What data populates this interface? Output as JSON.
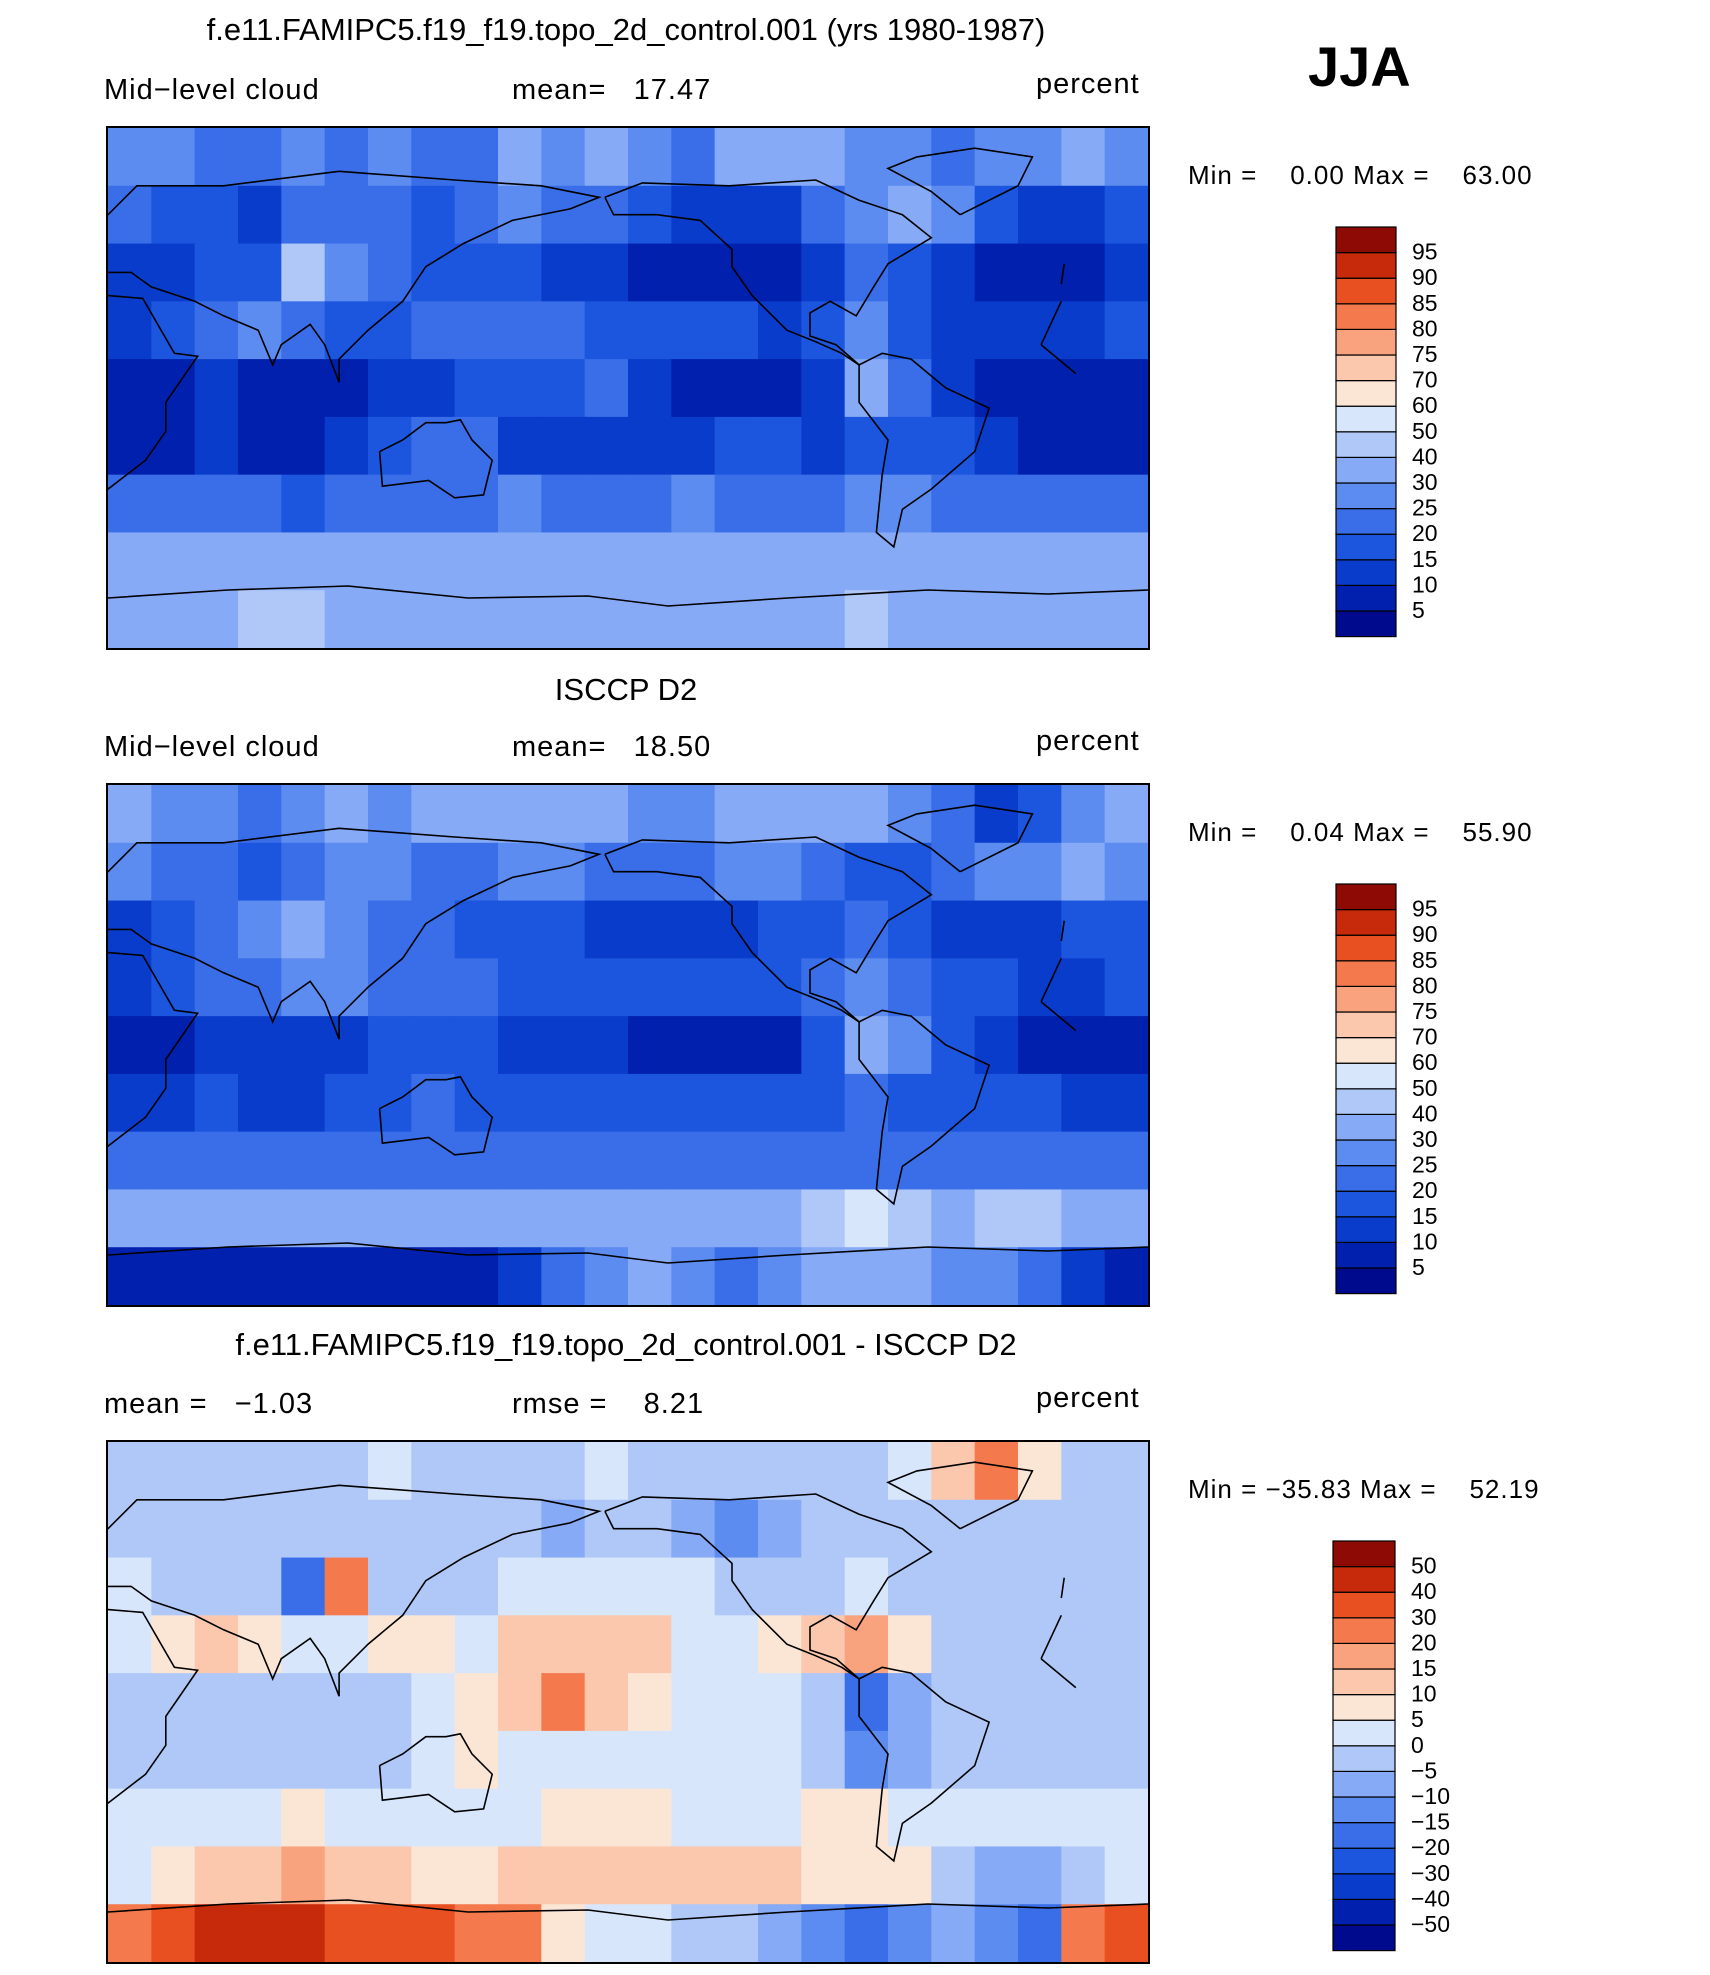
{
  "season": "JJA",
  "panels": [
    {
      "id": "model",
      "title": "f.e11.FAMIPC5.f19_f19.topo_2d_control.001 (yrs 1980-1987)",
      "left_label": "Mid−level cloud",
      "center_label": "mean=   17.47",
      "right_label": "percent",
      "min_label": "Min =",
      "min_value": "0.00",
      "max_label": "Max =",
      "max_value": "63.00"
    },
    {
      "id": "obs",
      "title": "ISCCP D2",
      "left_label": "Mid−level cloud",
      "center_label": "mean=   18.50",
      "right_label": "percent",
      "min_label": "Min =",
      "min_value": "0.04",
      "max_label": "Max =",
      "max_value": "55.90"
    },
    {
      "id": "diff",
      "title": "f.e11.FAMIPC5.f19_f19.topo_2d_control.001 - ISCCP D2",
      "left_label": "mean =   −1.03",
      "center_label": "rmse =    8.21",
      "right_label": "percent",
      "min_label": "Min =",
      "min_value": "−35.83",
      "max_label": "Max =",
      "max_value": "52.19"
    }
  ],
  "chart_data": [
    {
      "type": "heatmap",
      "title": "f.e11.FAMIPC5.f19_f19.topo_2d_control.001 (yrs 1980-1987)",
      "variable": "Mid-level cloud",
      "units": "percent",
      "mean": 17.47,
      "min": 0.0,
      "max": 63.0,
      "colorbar_levels": [
        5,
        10,
        15,
        20,
        25,
        30,
        40,
        50,
        60,
        70,
        75,
        80,
        85,
        90,
        95
      ],
      "colorbar_colors": [
        "#000a8c",
        "#0020ad",
        "#0a3ccc",
        "#1c55de",
        "#3a6ee8",
        "#5c8cf0",
        "#86aaf5",
        "#b0c8f8",
        "#d8e6fb",
        "#fbe6d6",
        "#fbc7ad",
        "#f9a27e",
        "#f47a4e",
        "#e85022",
        "#c72a0a",
        "#8e0a04"
      ],
      "field_pattern": [
        [
          25,
          25,
          20,
          20,
          25,
          20,
          25,
          20,
          20,
          30,
          25,
          30,
          25,
          20,
          30,
          35,
          30,
          25,
          25,
          20,
          25,
          25,
          30,
          25
        ],
        [
          20,
          15,
          15,
          10,
          20,
          20,
          20,
          15,
          20,
          25,
          20,
          20,
          15,
          10,
          10,
          10,
          20,
          25,
          30,
          25,
          15,
          10,
          10,
          15
        ],
        [
          10,
          10,
          15,
          15,
          40,
          25,
          20,
          15,
          15,
          15,
          10,
          10,
          5,
          5,
          5,
          5,
          10,
          20,
          15,
          10,
          5,
          5,
          5,
          10
        ],
        [
          10,
          15,
          20,
          25,
          20,
          15,
          15,
          20,
          20,
          20,
          20,
          15,
          15,
          15,
          15,
          10,
          15,
          25,
          15,
          10,
          10,
          10,
          10,
          15
        ],
        [
          5,
          5,
          10,
          5,
          5,
          5,
          10,
          10,
          15,
          15,
          15,
          20,
          10,
          5,
          5,
          5,
          10,
          30,
          20,
          10,
          5,
          5,
          5,
          5
        ],
        [
          5,
          5,
          10,
          5,
          5,
          10,
          15,
          20,
          20,
          10,
          10,
          10,
          10,
          10,
          15,
          15,
          10,
          15,
          15,
          15,
          10,
          5,
          5,
          5
        ],
        [
          20,
          20,
          20,
          20,
          15,
          20,
          20,
          20,
          20,
          25,
          20,
          20,
          20,
          25,
          20,
          20,
          20,
          25,
          25,
          20,
          20,
          20,
          20,
          20
        ],
        [
          30,
          30,
          35,
          30,
          35,
          35,
          30,
          30,
          30,
          30,
          35,
          30,
          30,
          30,
          35,
          35,
          30,
          30,
          30,
          30,
          35,
          35,
          30,
          30
        ],
        [
          30,
          35,
          35,
          40,
          45,
          35,
          30,
          30,
          35,
          35,
          30,
          30,
          35,
          30,
          35,
          35,
          35,
          40,
          35,
          35,
          30,
          30,
          35,
          30
        ]
      ]
    },
    {
      "type": "heatmap",
      "title": "ISCCP D2",
      "variable": "Mid-level cloud",
      "units": "percent",
      "mean": 18.5,
      "min": 0.04,
      "max": 55.9,
      "colorbar_levels": [
        5,
        10,
        15,
        20,
        25,
        30,
        40,
        50,
        60,
        70,
        75,
        80,
        85,
        90,
        95
      ],
      "colorbar_colors": [
        "#000a8c",
        "#0020ad",
        "#0a3ccc",
        "#1c55de",
        "#3a6ee8",
        "#5c8cf0",
        "#86aaf5",
        "#b0c8f8",
        "#d8e6fb",
        "#fbe6d6",
        "#fbc7ad",
        "#f9a27e",
        "#f47a4e",
        "#e85022",
        "#c72a0a",
        "#8e0a04"
      ],
      "field_pattern": [
        [
          30,
          25,
          25,
          20,
          25,
          30,
          25,
          30,
          30,
          35,
          35,
          30,
          25,
          25,
          30,
          35,
          35,
          30,
          25,
          20,
          10,
          15,
          25,
          30
        ],
        [
          25,
          20,
          20,
          15,
          20,
          25,
          25,
          20,
          20,
          25,
          25,
          20,
          20,
          20,
          25,
          25,
          20,
          15,
          15,
          20,
          25,
          25,
          30,
          25
        ],
        [
          10,
          15,
          20,
          25,
          30,
          25,
          20,
          20,
          15,
          15,
          15,
          10,
          10,
          10,
          10,
          15,
          15,
          20,
          15,
          10,
          10,
          10,
          15,
          15
        ],
        [
          10,
          15,
          20,
          20,
          25,
          25,
          20,
          20,
          20,
          15,
          15,
          15,
          15,
          15,
          15,
          15,
          20,
          25,
          20,
          15,
          15,
          10,
          10,
          15
        ],
        [
          5,
          5,
          10,
          10,
          10,
          10,
          15,
          15,
          15,
          10,
          10,
          10,
          5,
          5,
          5,
          5,
          15,
          30,
          25,
          15,
          10,
          5,
          5,
          5
        ],
        [
          10,
          10,
          15,
          10,
          10,
          15,
          15,
          20,
          15,
          15,
          15,
          15,
          15,
          15,
          15,
          15,
          15,
          20,
          15,
          15,
          15,
          15,
          10,
          10
        ],
        [
          20,
          20,
          20,
          20,
          20,
          20,
          20,
          20,
          20,
          20,
          20,
          20,
          20,
          20,
          20,
          20,
          20,
          20,
          20,
          20,
          20,
          20,
          20,
          20
        ],
        [
          30,
          30,
          30,
          30,
          30,
          30,
          30,
          30,
          30,
          30,
          30,
          30,
          30,
          30,
          30,
          35,
          40,
          50,
          40,
          35,
          45,
          40,
          30,
          30
        ],
        [
          5,
          5,
          5,
          5,
          5,
          5,
          5,
          5,
          5,
          10,
          20,
          25,
          30,
          25,
          20,
          25,
          30,
          35,
          30,
          25,
          25,
          20,
          10,
          5
        ]
      ]
    },
    {
      "type": "heatmap",
      "title": "f.e11.FAMIPC5.f19_f19.topo_2d_control.001 - ISCCP D2",
      "units": "percent",
      "mean": -1.03,
      "rmse": 8.21,
      "min": -35.83,
      "max": 52.19,
      "colorbar_levels": [
        -50,
        -40,
        -30,
        -20,
        -15,
        -10,
        -5,
        0,
        5,
        10,
        15,
        20,
        30,
        40,
        50
      ],
      "colorbar_colors": [
        "#000a8c",
        "#0020ad",
        "#0a3ccc",
        "#1c55de",
        "#3a6ee8",
        "#5c8cf0",
        "#86aaf5",
        "#b0c8f8",
        "#d8e6fb",
        "#fbe6d6",
        "#fbc7ad",
        "#f9a27e",
        "#f47a4e",
        "#e85022",
        "#c72a0a",
        "#8e0a04"
      ],
      "field_pattern": [
        [
          -5,
          -5,
          -3,
          -3,
          -5,
          -3,
          0,
          -5,
          -5,
          -3,
          -3,
          0,
          -3,
          -5,
          -3,
          -3,
          -5,
          -3,
          0,
          10,
          20,
          5,
          -3,
          -3
        ],
        [
          -3,
          -3,
          -5,
          -5,
          -3,
          -5,
          -3,
          -3,
          -5,
          -5,
          -10,
          -5,
          -5,
          -10,
          -15,
          -10,
          -5,
          -3,
          -3,
          -3,
          -5,
          -5,
          -3,
          -3
        ],
        [
          0,
          -3,
          -3,
          -3,
          -20,
          20,
          -5,
          -5,
          -3,
          0,
          3,
          3,
          3,
          0,
          -3,
          -3,
          -3,
          3,
          -3,
          -5,
          -5,
          -3,
          -3,
          -3
        ],
        [
          3,
          5,
          10,
          5,
          3,
          3,
          5,
          5,
          3,
          10,
          10,
          10,
          10,
          3,
          3,
          5,
          10,
          15,
          5,
          -3,
          -3,
          -3,
          -3,
          -3
        ],
        [
          -5,
          -3,
          -5,
          -5,
          -3,
          -3,
          -3,
          3,
          5,
          10,
          20,
          10,
          5,
          3,
          3,
          3,
          -3,
          -20,
          -10,
          -5,
          -3,
          -3,
          -5,
          -5
        ],
        [
          -5,
          -3,
          -3,
          -5,
          -5,
          -3,
          -3,
          3,
          5,
          3,
          3,
          3,
          3,
          3,
          3,
          3,
          -3,
          -15,
          -10,
          -3,
          -3,
          -3,
          -3,
          -5
        ],
        [
          3,
          3,
          3,
          3,
          5,
          3,
          3,
          3,
          3,
          3,
          5,
          5,
          5,
          3,
          3,
          3,
          5,
          5,
          3,
          3,
          3,
          3,
          3,
          3
        ],
        [
          3,
          5,
          10,
          10,
          15,
          10,
          10,
          5,
          5,
          10,
          10,
          10,
          10,
          10,
          10,
          10,
          5,
          5,
          5,
          -5,
          -10,
          -10,
          -5,
          3
        ],
        [
          25,
          30,
          40,
          45,
          40,
          35,
          35,
          30,
          25,
          20,
          5,
          3,
          0,
          -3,
          -5,
          -10,
          -15,
          -20,
          -15,
          -10,
          -15,
          -20,
          20,
          30
        ]
      ]
    }
  ]
}
